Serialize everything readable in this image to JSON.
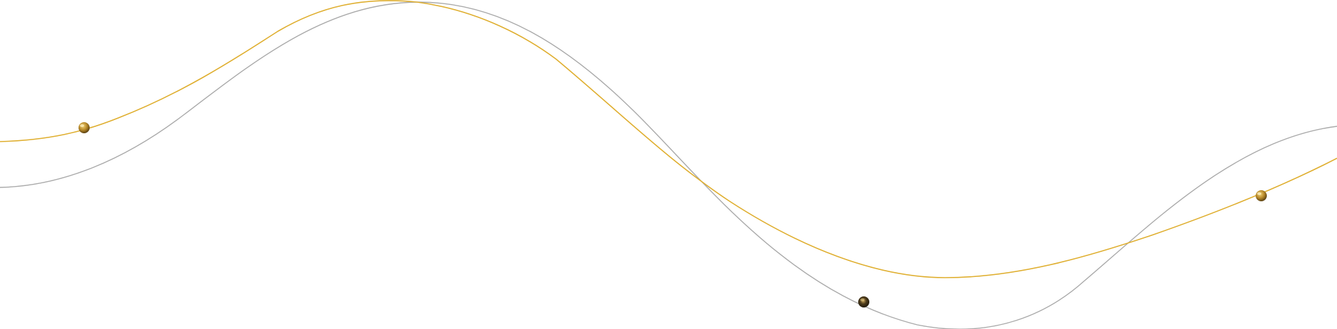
{
  "decoration": {
    "colors": {
      "background": "#ffffff",
      "gold_line": "#DFAE2E",
      "gray_line": "#A9A9A9",
      "bead_gold_light": "#F2D27A",
      "bead_gold_mid": "#B88A2A",
      "bead_gold_dark": "#5C4212",
      "bead_dark_light": "#C9A55A",
      "bead_dark_mid": "#4B3A1A",
      "bead_dark_dark": "#1A140A"
    },
    "icons": [
      "gold-wave-line",
      "gray-wave-line",
      "gold-bead-icon",
      "dark-bead-icon"
    ]
  }
}
